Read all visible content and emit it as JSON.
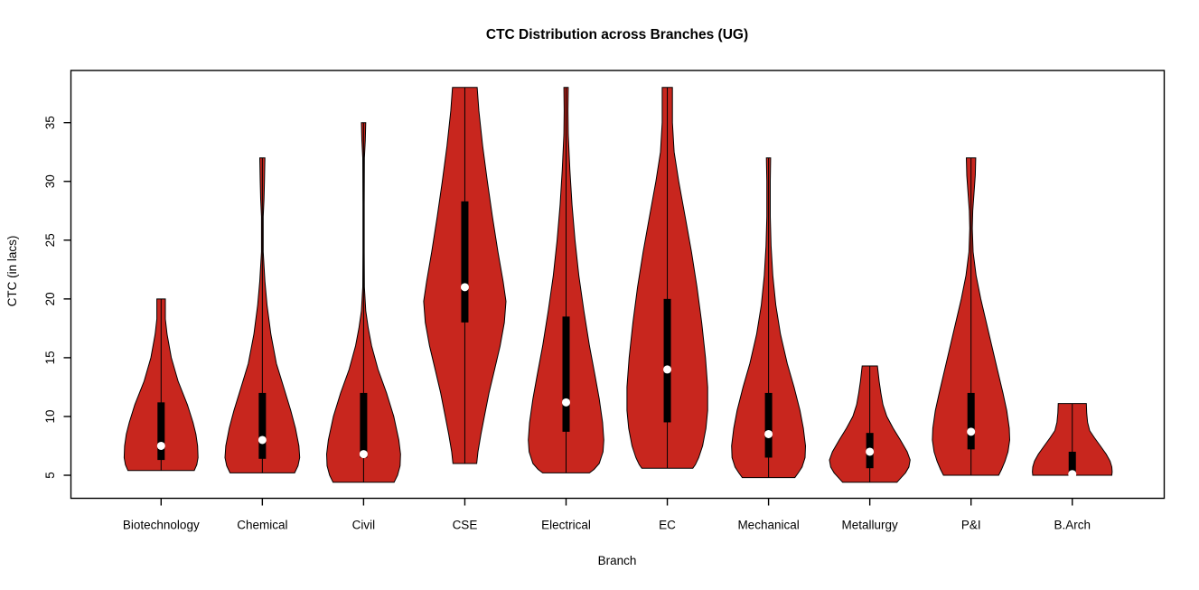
{
  "chart_data": {
    "type": "violin",
    "title": "CTC Distribution across Branches (UG)",
    "xlabel": "Branch",
    "ylabel": "CTC (in lacs)",
    "y_ticks": [
      5,
      10,
      15,
      20,
      25,
      30,
      35
    ],
    "y_tick_labels": [
      "5",
      "10",
      "15",
      "20",
      "25",
      "30",
      "35"
    ],
    "ylim": [
      3.0,
      39.4
    ],
    "grid": "off",
    "legend": "none",
    "categories": [
      "Biotechnology",
      "Chemical",
      "Civil",
      "CSE",
      "Electrical",
      "EC",
      "Mechanical",
      "Metallurgy",
      "P&I",
      "B.Arch"
    ],
    "colors": {
      "violin_fill": "#C8261E",
      "violin_outline": "#000000",
      "box": "#000000",
      "median_dot": "#ffffff",
      "axis": "#000000",
      "background": "#ffffff"
    },
    "series": [
      {
        "branch": "Biotechnology",
        "min": 5.4,
        "q1": 6.3,
        "median": 7.5,
        "q3": 11.2,
        "max": 20,
        "profile": [
          [
            20,
            0.1
          ],
          [
            18.3,
            0.1
          ],
          [
            17,
            0.14
          ],
          [
            15,
            0.24
          ],
          [
            13,
            0.4
          ],
          [
            11,
            0.62
          ],
          [
            9.5,
            0.75
          ],
          [
            8.5,
            0.82
          ],
          [
            7.5,
            0.86
          ],
          [
            6.5,
            0.87
          ],
          [
            5.9,
            0.84
          ],
          [
            5.4,
            0.78
          ]
        ]
      },
      {
        "branch": "Chemical",
        "min": 5.2,
        "q1": 6.4,
        "median": 8.0,
        "q3": 12.0,
        "max": 32,
        "profile": [
          [
            32,
            0.06
          ],
          [
            30,
            0.05
          ],
          [
            28.5,
            0.04
          ],
          [
            27,
            0.02
          ],
          [
            24,
            0.02
          ],
          [
            21.5,
            0.06
          ],
          [
            19.5,
            0.11
          ],
          [
            17,
            0.2
          ],
          [
            14.5,
            0.33
          ],
          [
            12.5,
            0.5
          ],
          [
            10.5,
            0.67
          ],
          [
            9,
            0.78
          ],
          [
            7.5,
            0.86
          ],
          [
            6.5,
            0.88
          ],
          [
            5.8,
            0.84
          ],
          [
            5.2,
            0.76
          ]
        ]
      },
      {
        "branch": "Civil",
        "min": 4.4,
        "q1": 6.5,
        "median": 6.8,
        "q3": 12.0,
        "max": 35,
        "profile": [
          [
            35,
            0.05
          ],
          [
            33.5,
            0.04
          ],
          [
            32,
            0.02
          ],
          [
            28,
            0.015
          ],
          [
            24,
            0.015
          ],
          [
            21,
            0.02
          ],
          [
            19,
            0.05
          ],
          [
            17.5,
            0.11
          ],
          [
            16,
            0.19
          ],
          [
            14,
            0.34
          ],
          [
            12,
            0.54
          ],
          [
            10,
            0.71
          ],
          [
            8,
            0.83
          ],
          [
            6.8,
            0.87
          ],
          [
            5.8,
            0.86
          ],
          [
            5,
            0.8
          ],
          [
            4.4,
            0.72
          ]
        ]
      },
      {
        "branch": "CSE",
        "min": 6.0,
        "q1": 18.0,
        "median": 21.0,
        "q3": 28.3,
        "max": 38,
        "profile": [
          [
            38,
            0.29
          ],
          [
            36,
            0.33
          ],
          [
            33,
            0.42
          ],
          [
            30,
            0.53
          ],
          [
            27,
            0.65
          ],
          [
            24,
            0.78
          ],
          [
            21.5,
            0.9
          ],
          [
            19.8,
            0.97
          ],
          [
            18,
            0.93
          ],
          [
            16,
            0.83
          ],
          [
            14,
            0.7
          ],
          [
            12,
            0.57
          ],
          [
            10,
            0.46
          ],
          [
            8.5,
            0.38
          ],
          [
            7,
            0.31
          ],
          [
            6,
            0.28
          ]
        ]
      },
      {
        "branch": "Electrical",
        "min": 5.2,
        "q1": 8.7,
        "median": 11.2,
        "q3": 18.5,
        "max": 38,
        "profile": [
          [
            38,
            0.05
          ],
          [
            36,
            0.045
          ],
          [
            34,
            0.05
          ],
          [
            31,
            0.09
          ],
          [
            28,
            0.14
          ],
          [
            25,
            0.21
          ],
          [
            22,
            0.3
          ],
          [
            19,
            0.42
          ],
          [
            16,
            0.55
          ],
          [
            13.5,
            0.68
          ],
          [
            11.5,
            0.78
          ],
          [
            9.5,
            0.86
          ],
          [
            8,
            0.89
          ],
          [
            7,
            0.87
          ],
          [
            6,
            0.78
          ],
          [
            5.5,
            0.66
          ],
          [
            5.2,
            0.55
          ]
        ]
      },
      {
        "branch": "EC",
        "min": 5.6,
        "q1": 9.5,
        "median": 14.0,
        "q3": 20.0,
        "max": 38,
        "profile": [
          [
            38,
            0.12
          ],
          [
            35,
            0.12
          ],
          [
            32.5,
            0.16
          ],
          [
            30,
            0.27
          ],
          [
            27,
            0.42
          ],
          [
            24,
            0.57
          ],
          [
            21,
            0.7
          ],
          [
            18,
            0.81
          ],
          [
            15,
            0.9
          ],
          [
            12.5,
            0.95
          ],
          [
            10.5,
            0.95
          ],
          [
            9,
            0.91
          ],
          [
            7.5,
            0.83
          ],
          [
            6.5,
            0.74
          ],
          [
            5.9,
            0.66
          ],
          [
            5.6,
            0.6
          ]
        ]
      },
      {
        "branch": "Mechanical",
        "min": 4.8,
        "q1": 6.5,
        "median": 8.5,
        "q3": 12.0,
        "max": 32,
        "profile": [
          [
            32,
            0.05
          ],
          [
            30,
            0.04
          ],
          [
            27,
            0.04
          ],
          [
            24.5,
            0.06
          ],
          [
            22,
            0.1
          ],
          [
            19.5,
            0.17
          ],
          [
            17,
            0.28
          ],
          [
            14.5,
            0.44
          ],
          [
            12.5,
            0.6
          ],
          [
            10.5,
            0.74
          ],
          [
            9,
            0.82
          ],
          [
            7.5,
            0.87
          ],
          [
            6.5,
            0.86
          ],
          [
            5.7,
            0.79
          ],
          [
            5.2,
            0.7
          ],
          [
            4.8,
            0.62
          ]
        ]
      },
      {
        "branch": "Metallurgy",
        "min": 4.4,
        "q1": 5.6,
        "median": 7.0,
        "q3": 8.6,
        "max": 14.3,
        "profile": [
          [
            14.3,
            0.18
          ],
          [
            13,
            0.22
          ],
          [
            12,
            0.26
          ],
          [
            11,
            0.31
          ],
          [
            10,
            0.4
          ],
          [
            9,
            0.55
          ],
          [
            8,
            0.72
          ],
          [
            7,
            0.88
          ],
          [
            6.3,
            0.95
          ],
          [
            5.7,
            0.92
          ],
          [
            5.2,
            0.84
          ],
          [
            4.8,
            0.74
          ],
          [
            4.4,
            0.64
          ]
        ]
      },
      {
        "branch": "P&I",
        "min": 5.0,
        "q1": 7.2,
        "median": 8.7,
        "q3": 12.0,
        "max": 32,
        "profile": [
          [
            32,
            0.11
          ],
          [
            30.5,
            0.1
          ],
          [
            29,
            0.07
          ],
          [
            27.5,
            0.04
          ],
          [
            26,
            0.03
          ],
          [
            24,
            0.05
          ],
          [
            22,
            0.12
          ],
          [
            20,
            0.23
          ],
          [
            18,
            0.36
          ],
          [
            16,
            0.49
          ],
          [
            14,
            0.62
          ],
          [
            12,
            0.75
          ],
          [
            10.5,
            0.84
          ],
          [
            9,
            0.9
          ],
          [
            8,
            0.91
          ],
          [
            7,
            0.87
          ],
          [
            6.2,
            0.8
          ],
          [
            5.5,
            0.72
          ],
          [
            5,
            0.65
          ]
        ]
      },
      {
        "branch": "B.Arch",
        "min": 5.0,
        "q1": 5.2,
        "median": 5.1,
        "q3": 7.0,
        "max": 11.1,
        "profile": [
          [
            11.1,
            0.33
          ],
          [
            10.3,
            0.34
          ],
          [
            9.5,
            0.36
          ],
          [
            8.8,
            0.41
          ],
          [
            8.2,
            0.52
          ],
          [
            7.5,
            0.66
          ],
          [
            6.8,
            0.8
          ],
          [
            6.2,
            0.89
          ],
          [
            5.7,
            0.93
          ],
          [
            5.3,
            0.94
          ],
          [
            5,
            0.93
          ]
        ]
      }
    ]
  }
}
